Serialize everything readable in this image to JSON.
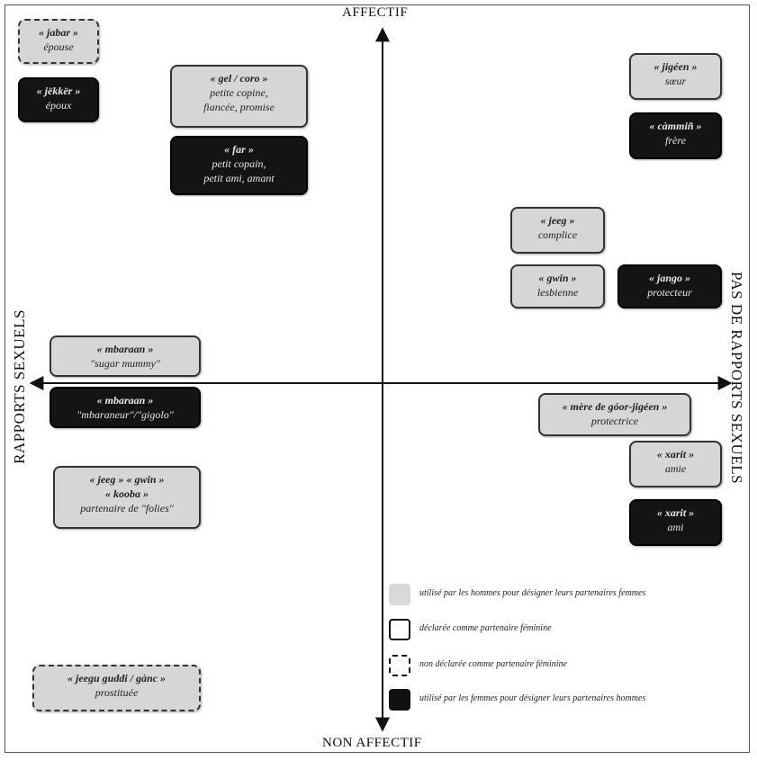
{
  "axes": {
    "top": "AFFECTIF",
    "bottom": "NON AFFECTIF",
    "left": "RAPPORTS SEXUELS",
    "right": "PAS DE RAPPORTS SEXUELS"
  },
  "terms": {
    "jabar": {
      "word": "« jabar »",
      "gloss": "épouse"
    },
    "jekker": {
      "word": "« jëkkër »",
      "gloss": "époux"
    },
    "gel": {
      "word": "« gel / coro »",
      "gloss1": "petite copine,",
      "gloss2": "fiancée, promise"
    },
    "far": {
      "word": "« far »",
      "gloss1": "petit copain,",
      "gloss2": "petit ami, amant"
    },
    "jigeen": {
      "word": "« jigéen »",
      "gloss": "sœur"
    },
    "cammin": {
      "word": "« càmmiñ »",
      "gloss": "frère"
    },
    "jeeg": {
      "word": "« jeeg »",
      "gloss": "complice"
    },
    "gwin": {
      "word": "« gwin »",
      "gloss": "lesbienne"
    },
    "jango": {
      "word": "« jango »",
      "gloss": "protecteur"
    },
    "mbaraan_f": {
      "word": "« mbaraan »",
      "gloss": "\"sugar mummy\""
    },
    "mbaraan_m": {
      "word": "« mbaraan »",
      "gloss": "\"mbaraneur\"/\"gigolo\""
    },
    "mere": {
      "word": "« mère de góor-jigéen »",
      "gloss": "protectrice"
    },
    "xarit_f": {
      "word": "« xarit »",
      "gloss": "amie"
    },
    "xarit_m": {
      "word": "« xarit »",
      "gloss": "ami"
    },
    "folies": {
      "word1": "« jeeg » « gwin »",
      "word2": "« kooba »",
      "gloss": "partenaire de \"folies\""
    },
    "jeegu": {
      "word": "« jeegu guddi / gànc »",
      "gloss": "prostituée"
    }
  },
  "legend": [
    {
      "style": "grey",
      "text": "utilisé par les hommes pour désigner leurs partenaires femmes"
    },
    {
      "style": "solid",
      "text": "déclarée comme partenaire féminine"
    },
    {
      "style": "dashed",
      "text": "non déclarée comme partenaire féminine"
    },
    {
      "style": "black",
      "text": "utilisé par les femmes pour désigner leurs partenaires hommes"
    }
  ],
  "colors": {
    "light_fill": "#d6d6d6",
    "dark_fill": "#141414",
    "axis": "#111111"
  }
}
